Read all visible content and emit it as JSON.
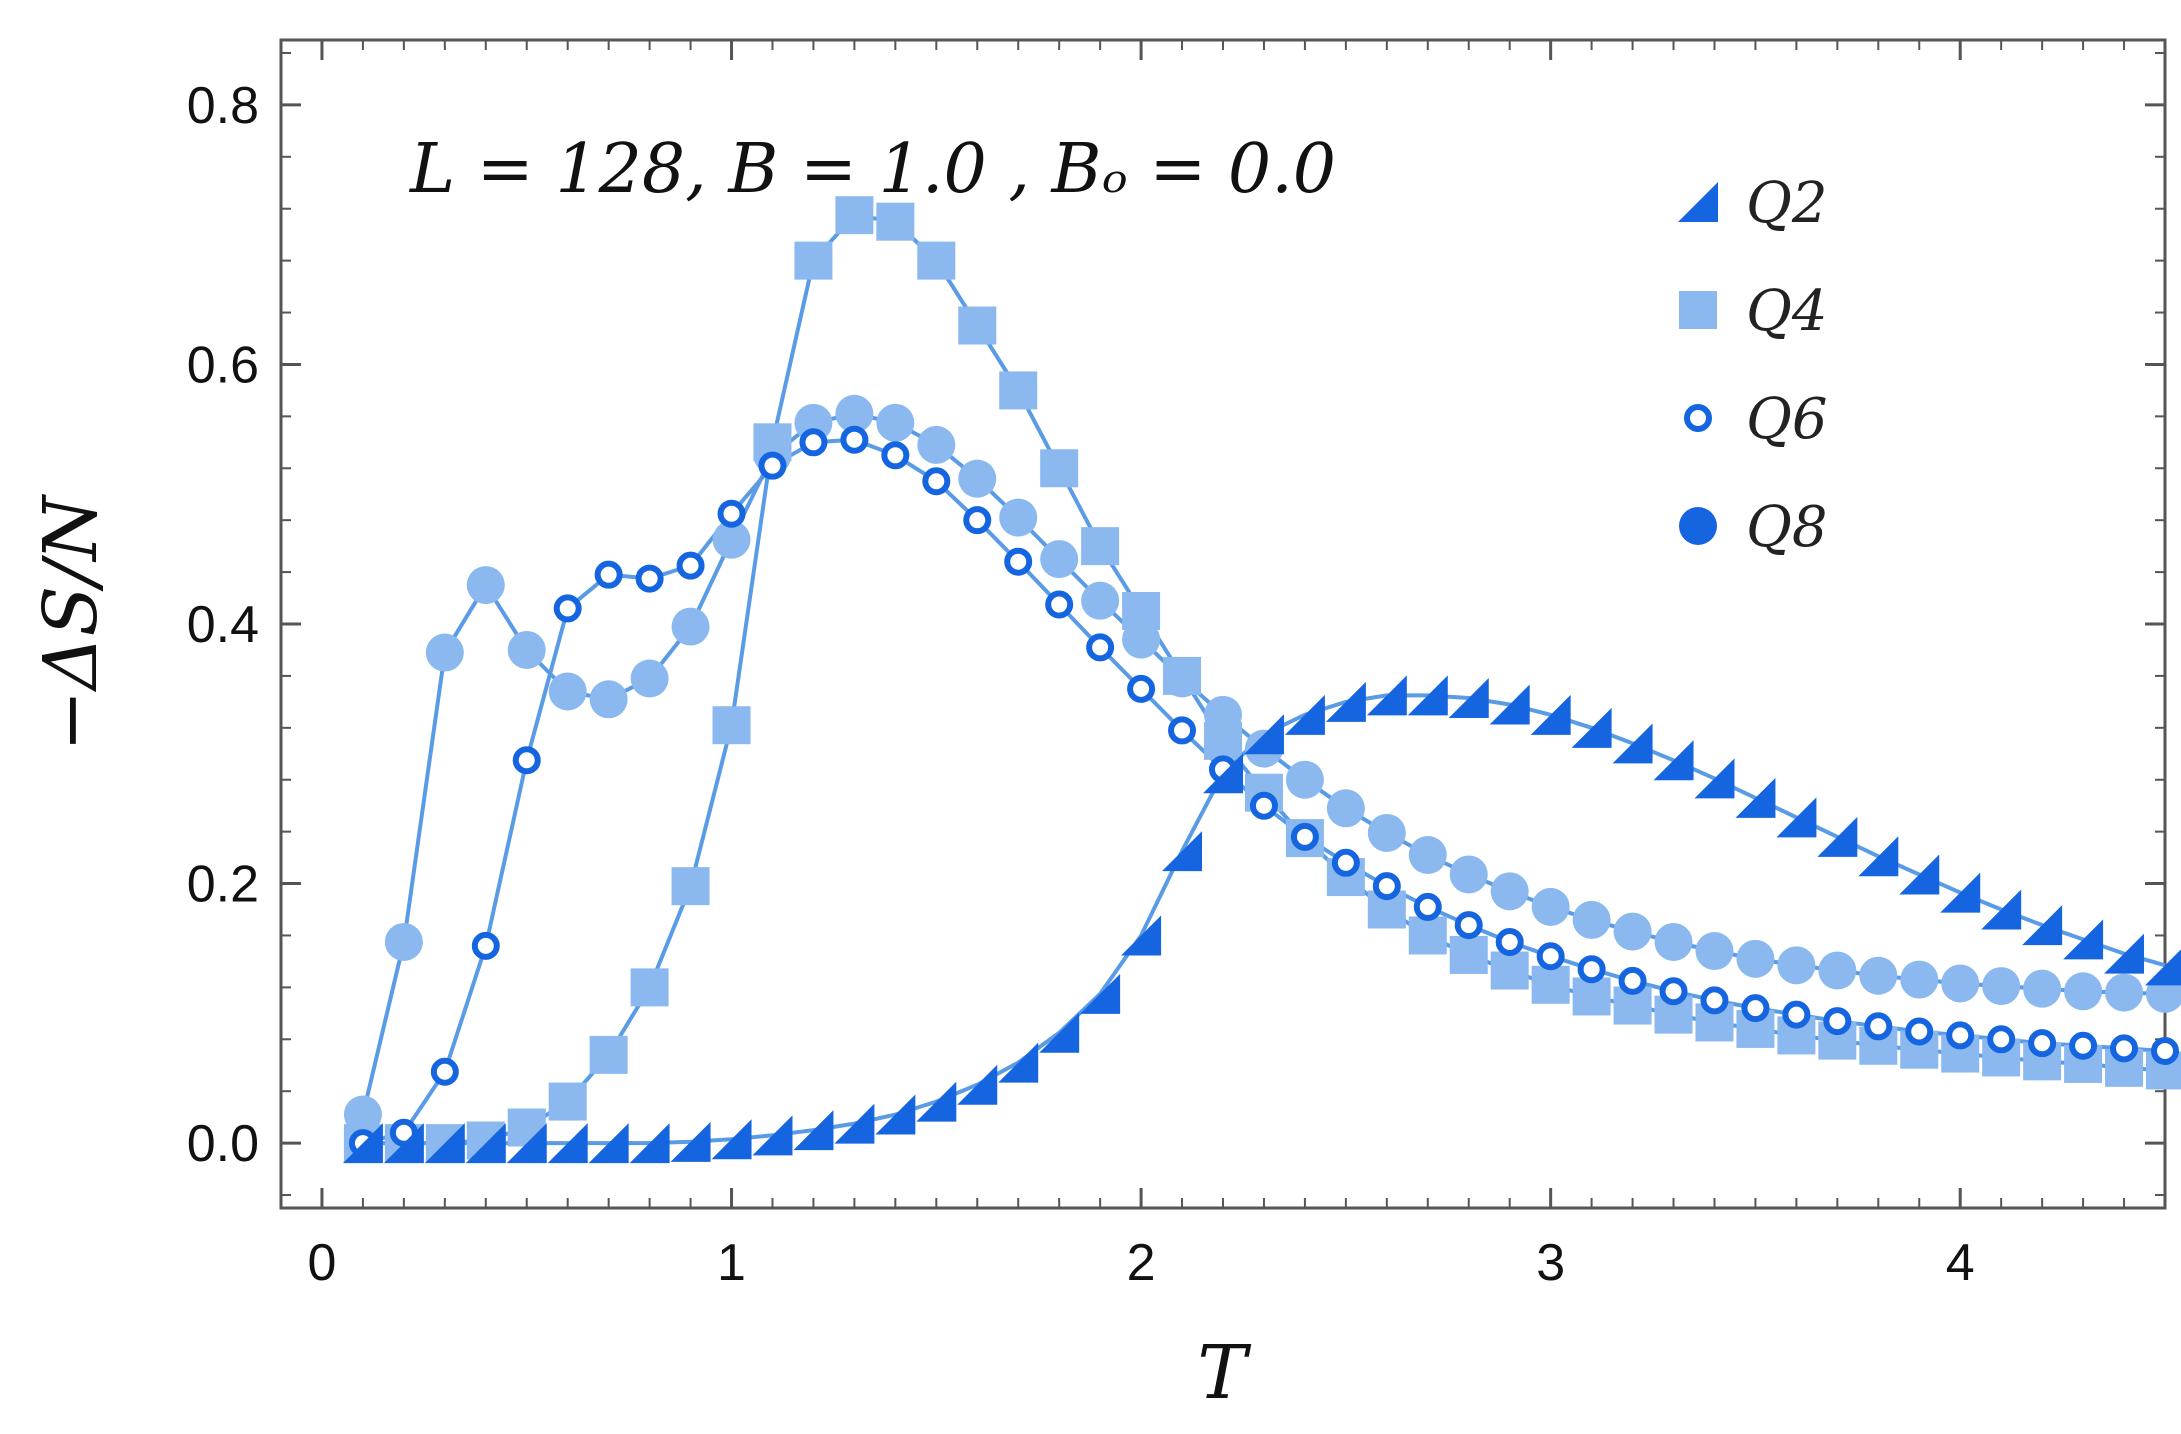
{
  "chart_data": {
    "type": "scatter",
    "title": "",
    "annotation": "L = 128, B = 1.0 , Bₒ = 0.0",
    "xlabel": "T",
    "ylabel": "−ΔS/N",
    "xlim": [
      -0.1,
      4.5
    ],
    "ylim": [
      -0.05,
      0.85
    ],
    "xticks": [
      0,
      1,
      2,
      3,
      4
    ],
    "xtick_labels": [
      "0",
      "1",
      "2",
      "3",
      "4"
    ],
    "yticks": [
      0.0,
      0.2,
      0.4,
      0.6,
      0.8
    ],
    "ytick_labels": [
      "0.0",
      "0.2",
      "0.4",
      "0.6",
      "0.8"
    ],
    "grid": false,
    "legend": "top-right",
    "colors": {
      "dark": "#1565e0",
      "light": "#8ab8ef",
      "line": "#5a9be6"
    },
    "series": [
      {
        "name": "Q2",
        "marker": "triangle",
        "x": [
          0.1,
          0.2,
          0.3,
          0.4,
          0.5,
          0.6,
          0.7,
          0.8,
          0.9,
          1.0,
          1.1,
          1.2,
          1.3,
          1.4,
          1.5,
          1.6,
          1.7,
          1.8,
          1.9,
          2.0,
          2.1,
          2.2,
          2.3,
          2.4,
          2.5,
          2.6,
          2.7,
          2.8,
          2.9,
          3.0,
          3.1,
          3.2,
          3.3,
          3.4,
          3.5,
          3.6,
          3.7,
          3.8,
          3.9,
          4.0,
          4.1,
          4.2,
          4.3,
          4.4,
          4.5
        ],
        "y": [
          0.0,
          0.0,
          0.0,
          0.0,
          0.0,
          0.0,
          0.0,
          0.0,
          0.001,
          0.003,
          0.006,
          0.01,
          0.015,
          0.022,
          0.032,
          0.045,
          0.062,
          0.085,
          0.115,
          0.16,
          0.225,
          0.285,
          0.315,
          0.33,
          0.34,
          0.345,
          0.345,
          0.343,
          0.338,
          0.33,
          0.32,
          0.308,
          0.295,
          0.281,
          0.266,
          0.251,
          0.236,
          0.221,
          0.207,
          0.193,
          0.18,
          0.168,
          0.157,
          0.146,
          0.137
        ]
      },
      {
        "name": "Q4",
        "marker": "square",
        "x": [
          0.1,
          0.2,
          0.3,
          0.4,
          0.5,
          0.6,
          0.7,
          0.8,
          0.9,
          1.0,
          1.1,
          1.2,
          1.3,
          1.4,
          1.5,
          1.6,
          1.7,
          1.8,
          1.9,
          2.0,
          2.1,
          2.2,
          2.3,
          2.4,
          2.5,
          2.6,
          2.7,
          2.8,
          2.9,
          3.0,
          3.1,
          3.2,
          3.3,
          3.4,
          3.5,
          3.6,
          3.7,
          3.8,
          3.9,
          4.0,
          4.1,
          4.2,
          4.3,
          4.4,
          4.5
        ],
        "y": [
          0.0,
          0.0,
          0.0,
          0.002,
          0.012,
          0.032,
          0.068,
          0.12,
          0.198,
          0.322,
          0.54,
          0.68,
          0.715,
          0.71,
          0.68,
          0.63,
          0.58,
          0.52,
          0.46,
          0.41,
          0.36,
          0.31,
          0.27,
          0.235,
          0.205,
          0.18,
          0.16,
          0.145,
          0.133,
          0.122,
          0.113,
          0.106,
          0.099,
          0.093,
          0.088,
          0.083,
          0.079,
          0.075,
          0.072,
          0.069,
          0.066,
          0.063,
          0.061,
          0.058,
          0.056
        ]
      },
      {
        "name": "Q6",
        "marker": "ring",
        "x": [
          0.1,
          0.2,
          0.3,
          0.4,
          0.5,
          0.6,
          0.7,
          0.8,
          0.9,
          1.0,
          1.1,
          1.2,
          1.3,
          1.4,
          1.5,
          1.6,
          1.7,
          1.8,
          1.9,
          2.0,
          2.1,
          2.2,
          2.3,
          2.4,
          2.5,
          2.6,
          2.7,
          2.8,
          2.9,
          3.0,
          3.1,
          3.2,
          3.3,
          3.4,
          3.5,
          3.6,
          3.7,
          3.8,
          3.9,
          4.0,
          4.1,
          4.2,
          4.3,
          4.4,
          4.5
        ],
        "y": [
          0.0,
          0.008,
          0.055,
          0.152,
          0.295,
          0.412,
          0.438,
          0.435,
          0.445,
          0.485,
          0.522,
          0.54,
          0.542,
          0.53,
          0.51,
          0.48,
          0.448,
          0.415,
          0.382,
          0.35,
          0.318,
          0.288,
          0.26,
          0.236,
          0.216,
          0.198,
          0.182,
          0.168,
          0.155,
          0.144,
          0.134,
          0.125,
          0.117,
          0.11,
          0.104,
          0.099,
          0.094,
          0.09,
          0.086,
          0.083,
          0.08,
          0.077,
          0.075,
          0.073,
          0.071
        ]
      },
      {
        "name": "Q8",
        "marker": "disc",
        "x": [
          0.1,
          0.2,
          0.3,
          0.4,
          0.5,
          0.6,
          0.7,
          0.8,
          0.9,
          1.0,
          1.1,
          1.2,
          1.3,
          1.4,
          1.5,
          1.6,
          1.7,
          1.8,
          1.9,
          2.0,
          2.1,
          2.2,
          2.3,
          2.4,
          2.5,
          2.6,
          2.7,
          2.8,
          2.9,
          3.0,
          3.1,
          3.2,
          3.3,
          3.4,
          3.5,
          3.6,
          3.7,
          3.8,
          3.9,
          4.0,
          4.1,
          4.2,
          4.3,
          4.4,
          4.5
        ],
        "y": [
          0.022,
          0.155,
          0.378,
          0.43,
          0.38,
          0.348,
          0.342,
          0.358,
          0.398,
          0.465,
          0.53,
          0.555,
          0.562,
          0.555,
          0.538,
          0.512,
          0.482,
          0.45,
          0.418,
          0.388,
          0.358,
          0.33,
          0.304,
          0.28,
          0.258,
          0.239,
          0.222,
          0.207,
          0.194,
          0.182,
          0.172,
          0.163,
          0.155,
          0.148,
          0.142,
          0.137,
          0.133,
          0.129,
          0.126,
          0.123,
          0.121,
          0.119,
          0.117,
          0.116,
          0.115
        ]
      }
    ]
  }
}
